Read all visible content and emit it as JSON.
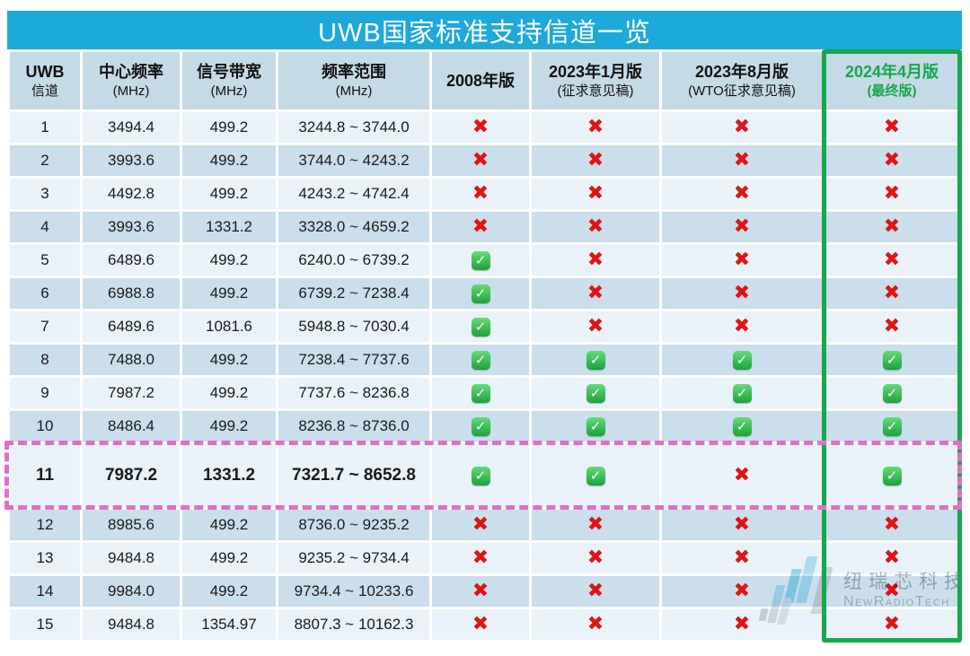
{
  "title": "UWB国家标准支持信道一览",
  "header": {
    "columns": [
      {
        "line1": "UWB",
        "line2": "信道"
      },
      {
        "line1": "中心频率",
        "line2": "(MHz)"
      },
      {
        "line1": "信号带宽",
        "line2": "(MHz)"
      },
      {
        "line1": "频率范围",
        "line2": "(MHz)"
      },
      {
        "line1": "2008年版",
        "line2": ""
      },
      {
        "line1": "2023年1月版",
        "line2": "(征求意见稿)"
      },
      {
        "line1": "2023年8月版",
        "line2": "(WTO征求意见稿)"
      },
      {
        "line1": "2024年4月版",
        "line2": "(最终版)"
      }
    ]
  },
  "rows": [
    {
      "channel": "1",
      "center_mhz": "3494.4",
      "bandwidth_mhz": "499.2",
      "range_mhz": "3244.8 ~ 3744.0",
      "marks": [
        "cross",
        "cross",
        "cross",
        "cross"
      ],
      "highlighted": false
    },
    {
      "channel": "2",
      "center_mhz": "3993.6",
      "bandwidth_mhz": "499.2",
      "range_mhz": "3744.0 ~ 4243.2",
      "marks": [
        "cross",
        "cross",
        "cross",
        "cross"
      ],
      "highlighted": false
    },
    {
      "channel": "3",
      "center_mhz": "4492.8",
      "bandwidth_mhz": "499.2",
      "range_mhz": "4243.2 ~ 4742.4",
      "marks": [
        "cross",
        "cross",
        "cross",
        "cross"
      ],
      "highlighted": false
    },
    {
      "channel": "4",
      "center_mhz": "3993.6",
      "bandwidth_mhz": "1331.2",
      "range_mhz": "3328.0 ~ 4659.2",
      "marks": [
        "cross",
        "cross",
        "cross",
        "cross"
      ],
      "highlighted": false
    },
    {
      "channel": "5",
      "center_mhz": "6489.6",
      "bandwidth_mhz": "499.2",
      "range_mhz": "6240.0 ~ 6739.2",
      "marks": [
        "check",
        "cross",
        "cross",
        "cross"
      ],
      "highlighted": false
    },
    {
      "channel": "6",
      "center_mhz": "6988.8",
      "bandwidth_mhz": "499.2",
      "range_mhz": "6739.2 ~ 7238.4",
      "marks": [
        "check",
        "cross",
        "cross",
        "cross"
      ],
      "highlighted": false
    },
    {
      "channel": "7",
      "center_mhz": "6489.6",
      "bandwidth_mhz": "1081.6",
      "range_mhz": "5948.8 ~ 7030.4",
      "marks": [
        "check",
        "cross",
        "cross",
        "cross"
      ],
      "highlighted": false
    },
    {
      "channel": "8",
      "center_mhz": "7488.0",
      "bandwidth_mhz": "499.2",
      "range_mhz": "7238.4 ~ 7737.6",
      "marks": [
        "check",
        "check",
        "check",
        "check"
      ],
      "highlighted": false
    },
    {
      "channel": "9",
      "center_mhz": "7987.2",
      "bandwidth_mhz": "499.2",
      "range_mhz": "7737.6 ~ 8236.8",
      "marks": [
        "check",
        "check",
        "check",
        "check"
      ],
      "highlighted": false
    },
    {
      "channel": "10",
      "center_mhz": "8486.4",
      "bandwidth_mhz": "499.2",
      "range_mhz": "8236.8 ~ 8736.0",
      "marks": [
        "check",
        "check",
        "check",
        "check"
      ],
      "highlighted": false
    },
    {
      "channel": "11",
      "center_mhz": "7987.2",
      "bandwidth_mhz": "1331.2",
      "range_mhz": "7321.7 ~ 8652.8",
      "marks": [
        "check",
        "check",
        "cross",
        "check"
      ],
      "highlighted": true
    },
    {
      "channel": "12",
      "center_mhz": "8985.6",
      "bandwidth_mhz": "499.2",
      "range_mhz": "8736.0 ~ 9235.2",
      "marks": [
        "cross",
        "cross",
        "cross",
        "cross"
      ],
      "highlighted": false
    },
    {
      "channel": "13",
      "center_mhz": "9484.8",
      "bandwidth_mhz": "499.2",
      "range_mhz": "9235.2 ~ 9734.4",
      "marks": [
        "cross",
        "cross",
        "cross",
        "cross"
      ],
      "highlighted": false
    },
    {
      "channel": "14",
      "center_mhz": "9984.0",
      "bandwidth_mhz": "499.2",
      "range_mhz": "9734.4 ~ 10233.6",
      "marks": [
        "cross",
        "cross",
        "cross",
        "cross"
      ],
      "highlighted": false
    },
    {
      "channel": "15",
      "center_mhz": "9484.8",
      "bandwidth_mhz": "1354.97",
      "range_mhz": "8807.3 ~ 10162.3",
      "marks": [
        "cross",
        "cross",
        "cross",
        "cross"
      ],
      "highlighted": false
    }
  ],
  "marks": {
    "check_glyph": "✓",
    "cross_glyph": "✖"
  },
  "colors": {
    "title_bar": "#1ea9db",
    "header_bg": "#c5dae7",
    "row_light": "#e9f2f8",
    "row_dark": "#cadeec",
    "final_column_green": "#17a74c",
    "highlight_magenta": "#df6fc8",
    "cross_red": "#e01414",
    "check_green": "#1ca23c"
  },
  "watermark": {
    "name_cn": "纽瑞芯科技",
    "name_en": "NewRadioTech"
  }
}
